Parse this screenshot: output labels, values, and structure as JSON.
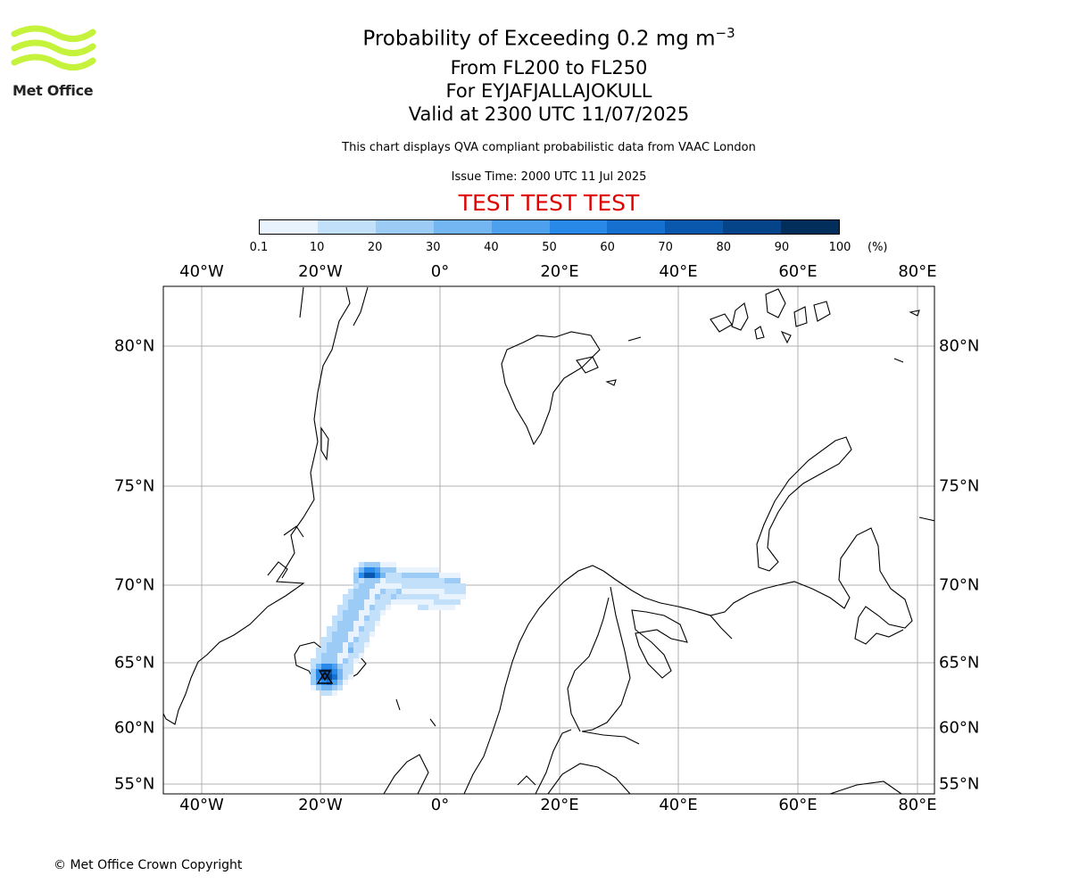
{
  "title": {
    "main": "Probability of Exceeding 0.2 mg m",
    "main_sup": "−3",
    "level": "From FL200 to FL250",
    "volcano": "For EYJAFJALLAJOKULL",
    "valid": "Valid at 2300 UTC 11/07/2025"
  },
  "subtitle": "This chart displays QVA compliant probabilistic data from VAAC London",
  "issue_time": "Issue Time: 2000 UTC 11 Jul 2025",
  "test_banner": "TEST TEST TEST",
  "logo": {
    "text": "Met Office",
    "color": "#c5f23a"
  },
  "copyright": "© Met Office Crown Copyright",
  "colorbar": {
    "ticks": [
      "0.1",
      "10",
      "20",
      "30",
      "40",
      "50",
      "60",
      "70",
      "80",
      "90",
      "100"
    ],
    "unit": "(%)",
    "colors": [
      "#e8f3fe",
      "#c3e0fa",
      "#9ccbf6",
      "#73b6f2",
      "#4da0ee",
      "#2989e8",
      "#1670d0",
      "#0a58ad",
      "#054488",
      "#022e5c"
    ]
  },
  "map": {
    "lon_labels": [
      "40°W",
      "20°W",
      "0°",
      "20°E",
      "40°E",
      "60°E",
      "80°E"
    ],
    "lat_labels": [
      "80°N",
      "75°N",
      "70°N",
      "65°N",
      "60°N",
      "55°N"
    ]
  }
}
